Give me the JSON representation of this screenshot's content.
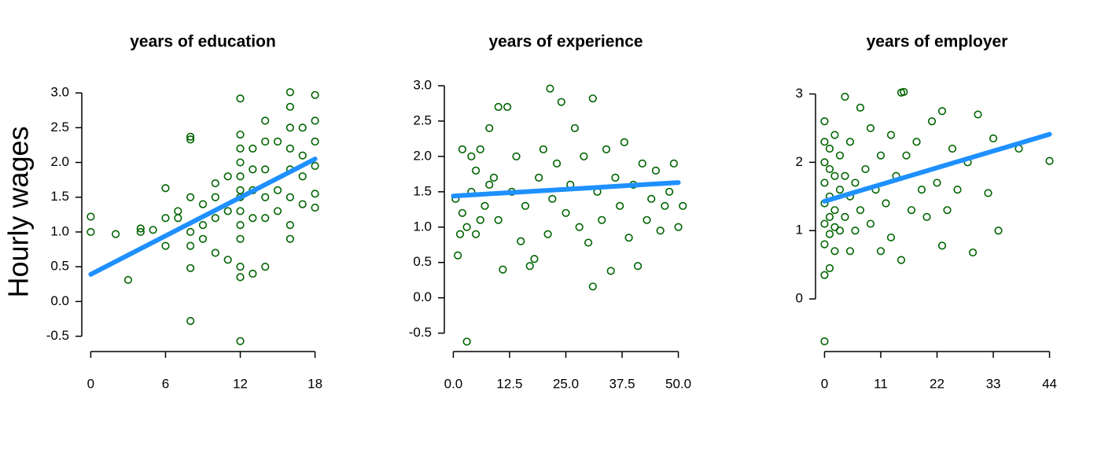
{
  "chart_data": [
    {
      "type": "scatter",
      "title": "years of education",
      "ylabel": "Hourly wages",
      "color": "#006400",
      "x": [
        0,
        0,
        2,
        3,
        4,
        4,
        5,
        6,
        6,
        6,
        7,
        7,
        8,
        8,
        8,
        8,
        8,
        8,
        8,
        9,
        9,
        9,
        10,
        10,
        10,
        10,
        11,
        11,
        11,
        12,
        12,
        12,
        12,
        12,
        12,
        12,
        12,
        12,
        12,
        12,
        12,
        12,
        13,
        13,
        13,
        13,
        13,
        14,
        14,
        14,
        14,
        14,
        14,
        15,
        15,
        15,
        16,
        16,
        16,
        16,
        16,
        16,
        16,
        16,
        17,
        17,
        17,
        17,
        18,
        18,
        18,
        18,
        18,
        18
      ],
      "y": [
        1.22,
        1.0,
        0.97,
        0.31,
        1.05,
        1.0,
        1.03,
        1.63,
        1.2,
        0.8,
        1.2,
        1.3,
        2.37,
        2.33,
        1.5,
        1.0,
        0.8,
        0.48,
        -0.28,
        1.4,
        1.1,
        0.9,
        1.7,
        1.5,
        1.2,
        0.7,
        1.8,
        1.3,
        0.6,
        2.92,
        2.4,
        2.2,
        2.0,
        1.8,
        1.6,
        1.5,
        1.3,
        1.1,
        0.9,
        0.5,
        0.35,
        -0.57,
        2.2,
        1.9,
        1.6,
        1.2,
        0.4,
        2.6,
        2.3,
        1.9,
        1.5,
        1.2,
        0.5,
        2.3,
        1.6,
        1.3,
        3.01,
        2.8,
        2.5,
        2.2,
        1.9,
        1.5,
        1.1,
        0.9,
        2.5,
        2.1,
        1.8,
        1.4,
        2.97,
        2.6,
        2.3,
        1.95,
        1.55,
        1.35
      ],
      "fit": {
        "x": [
          0,
          18
        ],
        "y": [
          0.39,
          2.05
        ],
        "color": "#1e90ff"
      },
      "xlim": [
        -0.72,
        18.72
      ],
      "ylim": [
        -0.72,
        3.16
      ],
      "xticks": [
        0,
        6,
        12,
        18
      ],
      "yticks": [
        -0.5,
        {
          "value": 0,
          "label": "0.0"
        },
        0.5,
        {
          "value": 1,
          "label": "1.0"
        },
        1.5,
        {
          "value": 2,
          "label": "2.0"
        },
        2.5,
        {
          "value": 3,
          "label": "3.0"
        }
      ]
    },
    {
      "type": "scatter",
      "title": "years of experience",
      "color": "#006400",
      "x": [
        3,
        1,
        2,
        2,
        3,
        4,
        5,
        5,
        6,
        7,
        8,
        9,
        10,
        10,
        11,
        12,
        13,
        14,
        15,
        16,
        17,
        18,
        19,
        20,
        21,
        21.5,
        22,
        23,
        24,
        25,
        26,
        27,
        28,
        29,
        30,
        31,
        31,
        32,
        33,
        34,
        35,
        36,
        37,
        38,
        39,
        40,
        41,
        42,
        43,
        44,
        45,
        46,
        47,
        48,
        49,
        50,
        51,
        0.5,
        1.5,
        4,
        6,
        8
      ],
      "y": [
        -0.62,
        0.6,
        1.2,
        2.1,
        1.0,
        1.5,
        0.9,
        1.8,
        2.1,
        1.3,
        2.4,
        1.7,
        2.7,
        1.1,
        0.4,
        2.7,
        1.5,
        2.0,
        0.8,
        1.3,
        0.45,
        0.55,
        1.7,
        2.1,
        0.9,
        2.96,
        1.4,
        1.9,
        2.77,
        1.2,
        1.6,
        2.4,
        1.0,
        2.0,
        0.78,
        2.82,
        0.16,
        1.5,
        1.1,
        2.1,
        0.38,
        1.7,
        1.3,
        2.2,
        0.85,
        1.6,
        0.45,
        1.9,
        1.1,
        1.4,
        1.8,
        0.95,
        1.3,
        1.5,
        1.9,
        1.0,
        1.3,
        1.4,
        0.9,
        2.0,
        1.1,
        1.6
      ],
      "fit": {
        "x": [
          0,
          50
        ],
        "y": [
          1.44,
          1.63
        ],
        "color": "#1e90ff"
      },
      "xlim": [
        -2,
        52
      ],
      "ylim": [
        -0.76,
        3.1
      ],
      "xticks": [
        {
          "value": 0,
          "label": "0.0"
        },
        12.5,
        {
          "value": 25,
          "label": "25.0"
        },
        37.5,
        {
          "value": 50,
          "label": "50.0"
        }
      ],
      "yticks": [
        -0.5,
        {
          "value": 0,
          "label": "0.0"
        },
        0.5,
        {
          "value": 1,
          "label": "1.0"
        },
        1.5,
        {
          "value": 2,
          "label": "2.0"
        },
        2.5,
        {
          "value": 3,
          "label": "3.0"
        }
      ]
    },
    {
      "type": "scatter",
      "title": "years of employer",
      "color": "#006400",
      "x": [
        0,
        0,
        0,
        0,
        0,
        0,
        0,
        0,
        0,
        1,
        1,
        1,
        1,
        1,
        2,
        2,
        2,
        2,
        3,
        3,
        3,
        4,
        4,
        4,
        5,
        5,
        5,
        6,
        6,
        7,
        7,
        8,
        9,
        9,
        10,
        11,
        11,
        12,
        13,
        13,
        14,
        15,
        15,
        15.5,
        16,
        17,
        18,
        19,
        20,
        21,
        22,
        23,
        23,
        24,
        25,
        26,
        28,
        29,
        30,
        32,
        33,
        34,
        38,
        44,
        1,
        2
      ],
      "y": [
        -0.62,
        0.35,
        0.8,
        1.1,
        1.4,
        1.7,
        2.0,
        2.3,
        2.6,
        0.45,
        1.2,
        1.5,
        1.9,
        2.2,
        0.7,
        1.3,
        1.8,
        2.4,
        1.0,
        1.6,
        2.1,
        2.96,
        1.2,
        1.8,
        0.7,
        1.5,
        2.3,
        1.0,
        1.7,
        2.8,
        1.3,
        1.9,
        2.5,
        1.1,
        1.6,
        0.7,
        2.1,
        1.4,
        2.4,
        0.9,
        1.8,
        0.57,
        3.02,
        3.03,
        2.1,
        1.3,
        2.3,
        1.6,
        1.2,
        2.6,
        1.7,
        0.78,
        2.75,
        1.3,
        2.2,
        1.6,
        2.0,
        0.68,
        2.7,
        1.55,
        2.35,
        1.0,
        2.2,
        2.02,
        0.95,
        1.05
      ],
      "fit": {
        "x": [
          0,
          44
        ],
        "y": [
          1.43,
          2.41
        ],
        "color": "#1e90ff"
      },
      "xlim": [
        -1.76,
        45.76
      ],
      "ylim": [
        -0.77,
        3.19
      ],
      "xticks": [
        0,
        11,
        22,
        33,
        44
      ],
      "yticks": [
        0,
        1,
        2,
        3
      ]
    }
  ]
}
